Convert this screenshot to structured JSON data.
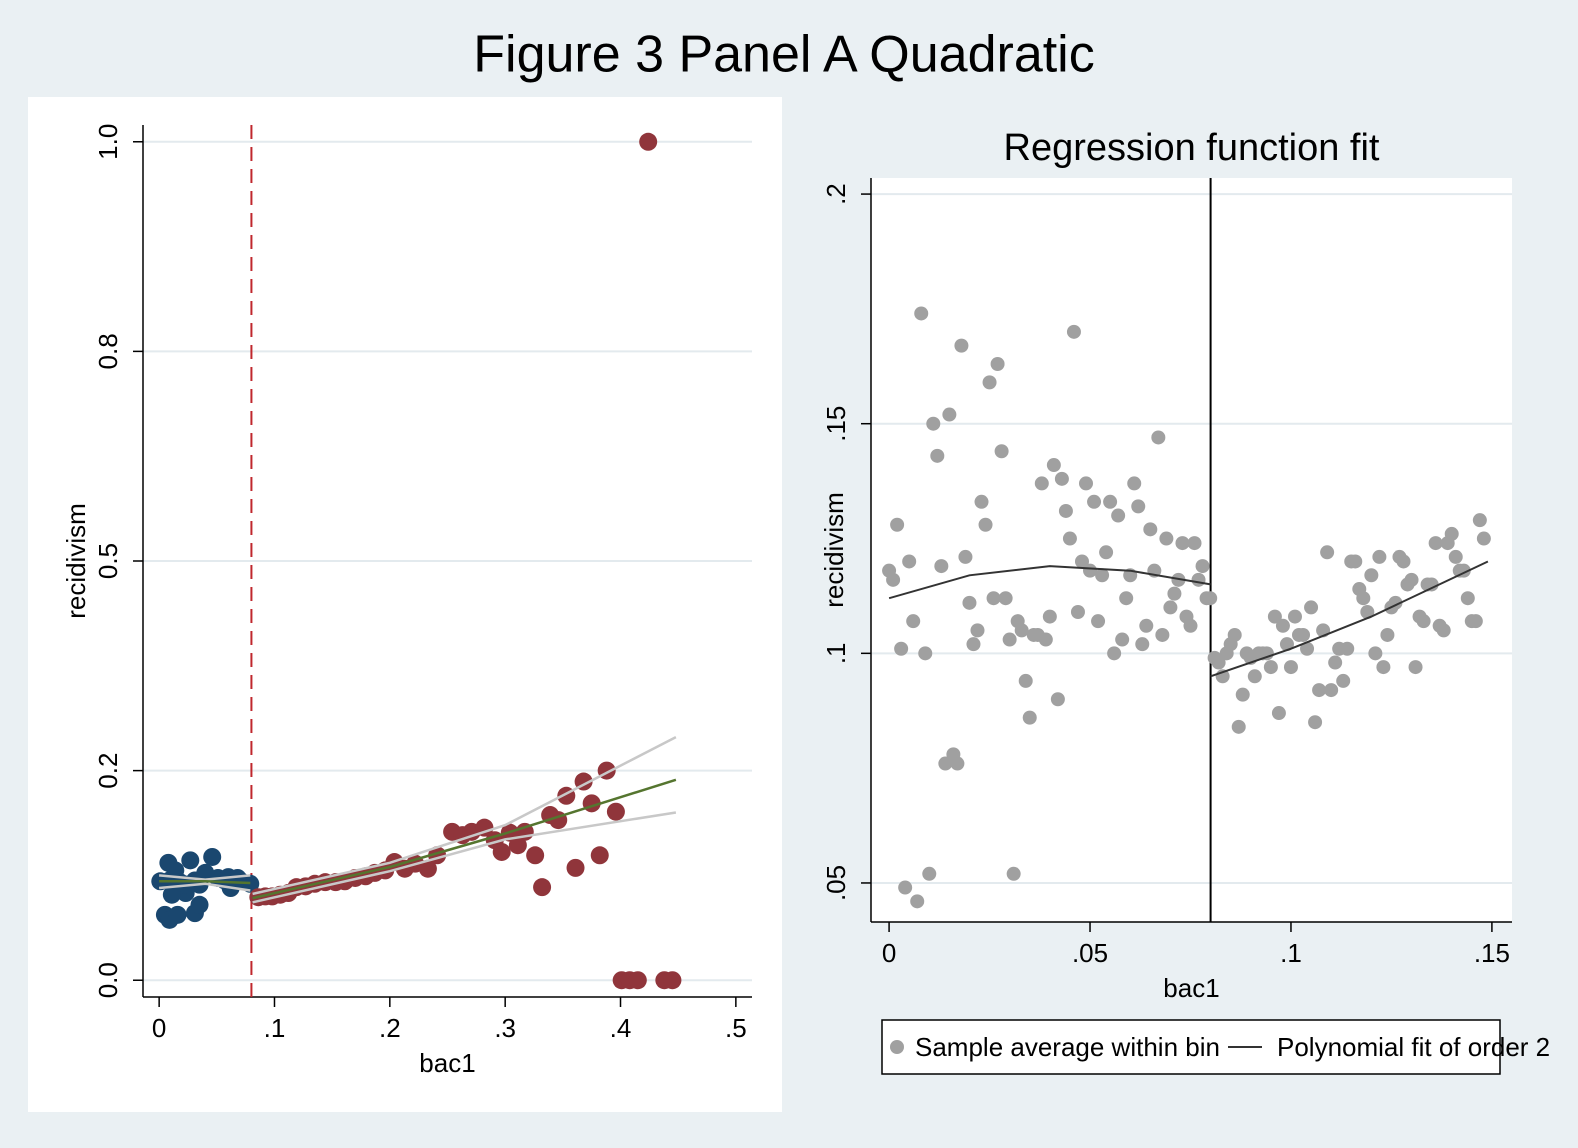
{
  "title": "Figure 3 Panel A Quadratic",
  "chart_data": [
    {
      "type": "scatter",
      "x_label": "bac1",
      "y_label": "recidivism",
      "xlim": [
        -0.014,
        0.514
      ],
      "ylim": [
        -0.02,
        1.02
      ],
      "xticks": [
        0,
        {
          "value": 0.1,
          "label": ".1"
        },
        {
          "value": 0.2,
          "label": ".2"
        },
        {
          "value": 0.3,
          "label": ".3"
        },
        {
          "value": 0.4,
          "label": ".4"
        },
        {
          "value": 0.5,
          "label": ".5"
        }
      ],
      "yticks": [
        {
          "value": 0,
          "label": "0.0"
        },
        {
          "value": 0.25,
          "label": "0.2"
        },
        {
          "value": 0.5,
          "label": "0.5"
        },
        {
          "value": 0.75,
          "label": "0.8"
        },
        {
          "value": 1,
          "label": "1.0"
        }
      ],
      "grid": true,
      "cutoff": 0.08,
      "cutoff_color": "#c0272d",
      "cutoff_dashed": true,
      "series": [
        {
          "type": "scatter",
          "color": "#1a476f",
          "x": [
            0.001,
            0.008,
            0.009,
            0.014,
            0.018,
            0.023,
            0.027,
            0.031,
            0.035,
            0.04,
            0.046,
            0.051,
            0.057,
            0.062,
            0.07,
            0.079,
            0.005,
            0.009,
            0.016,
            0.031,
            0.035,
            0.023,
            0.011,
            0.06,
            0.068
          ],
          "values": [
            0.118,
            0.14,
            0.119,
            0.131,
            0.117,
            0.104,
            0.143,
            0.119,
            0.114,
            0.128,
            0.147,
            0.122,
            0.119,
            0.11,
            0.119,
            0.115,
            0.078,
            0.072,
            0.078,
            0.08,
            0.09,
            0.114,
            0.102,
            0.123,
            0.122
          ]
        },
        {
          "type": "scatter",
          "color": "#90353b",
          "x": [
            0.086,
            0.092,
            0.098,
            0.105,
            0.112,
            0.119,
            0.127,
            0.135,
            0.144,
            0.153,
            0.161,
            0.17,
            0.179,
            0.187,
            0.196,
            0.204,
            0.213,
            0.222,
            0.233,
            0.241,
            0.254,
            0.263,
            0.271,
            0.282,
            0.291,
            0.297,
            0.304,
            0.311,
            0.317,
            0.326,
            0.332,
            0.339,
            0.346,
            0.353,
            0.361,
            0.368,
            0.375,
            0.382,
            0.388,
            0.396,
            0.424,
            0.401,
            0.408,
            0.415,
            0.438,
            0.445
          ],
          "values": [
            0.099,
            0.1,
            0.1,
            0.102,
            0.104,
            0.111,
            0.112,
            0.115,
            0.117,
            0.117,
            0.118,
            0.122,
            0.124,
            0.128,
            0.131,
            0.141,
            0.133,
            0.139,
            0.133,
            0.149,
            0.177,
            0.173,
            0.177,
            0.182,
            0.167,
            0.153,
            0.176,
            0.161,
            0.177,
            0.149,
            0.111,
            0.197,
            0.191,
            0.22,
            0.134,
            0.237,
            0.211,
            0.149,
            0.25,
            0.201,
            1.0,
            0,
            0,
            0,
            0,
            0
          ]
        },
        {
          "type": "line",
          "color": "#c8c8c8",
          "x": [
            0,
            0.04,
            0.079
          ],
          "values": [
            0.125,
            0.12,
            0.125
          ]
        },
        {
          "type": "line",
          "color": "#c8c8c8",
          "x": [
            0,
            0.04,
            0.079
          ],
          "values": [
            0.11,
            0.115,
            0.107
          ]
        },
        {
          "type": "line",
          "color": "#55752f",
          "x": [
            0,
            0.04,
            0.079
          ],
          "values": [
            0.118,
            0.118,
            0.116
          ]
        },
        {
          "type": "line",
          "color": "#c8c8c8",
          "x": [
            0.081,
            0.2,
            0.3,
            0.448
          ],
          "values": [
            0.103,
            0.14,
            0.185,
            0.29
          ]
        },
        {
          "type": "line",
          "color": "#c8c8c8",
          "x": [
            0.081,
            0.2,
            0.3,
            0.448
          ],
          "values": [
            0.093,
            0.13,
            0.168,
            0.2
          ]
        },
        {
          "type": "line",
          "color": "#55752f",
          "x": [
            0.081,
            0.2,
            0.3,
            0.448
          ],
          "values": [
            0.098,
            0.135,
            0.175,
            0.239
          ]
        }
      ]
    },
    {
      "type": "scatter",
      "title": "Regression function fit",
      "x_label": "bac1",
      "y_label": "recidivism",
      "xlim": [
        -0.0045,
        0.155
      ],
      "ylim": [
        0.0415,
        0.2035
      ],
      "xticks": [
        0,
        {
          "value": 0.05,
          "label": ".05"
        },
        {
          "value": 0.1,
          "label": ".1"
        },
        {
          "value": 0.15,
          "label": ".15"
        }
      ],
      "yticks": [
        {
          "value": 0.05,
          "label": ".05"
        },
        {
          "value": 0.1,
          "label": ".1"
        },
        {
          "value": 0.15,
          "label": ".15"
        },
        {
          "value": 0.2,
          "label": ".2"
        }
      ],
      "grid": true,
      "cutoff": 0.08,
      "cutoff_color": "#000000",
      "cutoff_dashed": false,
      "series": [
        {
          "type": "scatter",
          "name": "Sample average within bin",
          "color": "#a0a0a0",
          "x": [
            0.0,
            0.001,
            0.002,
            0.003,
            0.005,
            0.006,
            0.008,
            0.009,
            0.01,
            0.011,
            0.012,
            0.013,
            0.014,
            0.015,
            0.016,
            0.017,
            0.018,
            0.019,
            0.02,
            0.021,
            0.022,
            0.023,
            0.024,
            0.025,
            0.026,
            0.027,
            0.028,
            0.029,
            0.03,
            0.031,
            0.032,
            0.033,
            0.034,
            0.035,
            0.036,
            0.037,
            0.038,
            0.039,
            0.04,
            0.041,
            0.042,
            0.043,
            0.044,
            0.045,
            0.046,
            0.047,
            0.048,
            0.049,
            0.05,
            0.051,
            0.052,
            0.053,
            0.054,
            0.055,
            0.056,
            0.057,
            0.058,
            0.059,
            0.06,
            0.061,
            0.062,
            0.063,
            0.064,
            0.065,
            0.066,
            0.067,
            0.068,
            0.069,
            0.07,
            0.071,
            0.072,
            0.073,
            0.074,
            0.075,
            0.076,
            0.077,
            0.078,
            0.079,
            0.0799,
            0.004,
            0.007,
            0.081,
            0.082,
            0.083,
            0.084,
            0.085,
            0.086,
            0.087,
            0.088,
            0.089,
            0.09,
            0.091,
            0.092,
            0.093,
            0.094,
            0.095,
            0.096,
            0.097,
            0.098,
            0.099,
            0.1,
            0.101,
            0.102,
            0.103,
            0.104,
            0.105,
            0.106,
            0.107,
            0.108,
            0.109,
            0.11,
            0.111,
            0.112,
            0.113,
            0.114,
            0.115,
            0.116,
            0.117,
            0.118,
            0.119,
            0.12,
            0.121,
            0.122,
            0.123,
            0.124,
            0.125,
            0.126,
            0.127,
            0.128,
            0.129,
            0.13,
            0.131,
            0.132,
            0.133,
            0.134,
            0.135,
            0.136,
            0.137,
            0.138,
            0.139,
            0.14,
            0.141,
            0.142,
            0.143,
            0.144,
            0.145,
            0.146,
            0.147,
            0.148
          ],
          "values": [
            0.118,
            0.116,
            0.128,
            0.101,
            0.12,
            0.107,
            0.174,
            0.1,
            0.052,
            0.15,
            0.143,
            0.119,
            0.076,
            0.152,
            0.078,
            0.076,
            0.167,
            0.121,
            0.111,
            0.102,
            0.105,
            0.133,
            0.128,
            0.159,
            0.112,
            0.163,
            0.144,
            0.112,
            0.103,
            0.052,
            0.107,
            0.105,
            0.094,
            0.086,
            0.104,
            0.104,
            0.137,
            0.103,
            0.108,
            0.141,
            0.09,
            0.138,
            0.131,
            0.125,
            0.17,
            0.109,
            0.12,
            0.137,
            0.118,
            0.133,
            0.107,
            0.117,
            0.122,
            0.133,
            0.1,
            0.13,
            0.103,
            0.112,
            0.117,
            0.137,
            0.132,
            0.102,
            0.106,
            0.127,
            0.118,
            0.147,
            0.104,
            0.125,
            0.11,
            0.113,
            0.116,
            0.124,
            0.108,
            0.106,
            0.124,
            0.116,
            0.119,
            0.112,
            0.112,
            0.049,
            0.046,
            0.099,
            0.098,
            0.095,
            0.1,
            0.102,
            0.104,
            0.084,
            0.091,
            0.1,
            0.099,
            0.095,
            0.1,
            0.1,
            0.1,
            0.097,
            0.108,
            0.087,
            0.106,
            0.102,
            0.097,
            0.108,
            0.104,
            0.104,
            0.101,
            0.11,
            0.085,
            0.092,
            0.105,
            0.122,
            0.092,
            0.098,
            0.101,
            0.094,
            0.101,
            0.12,
            0.12,
            0.114,
            0.112,
            0.109,
            0.117,
            0.1,
            0.121,
            0.097,
            0.104,
            0.11,
            0.111,
            0.121,
            0.12,
            0.115,
            0.116,
            0.097,
            0.108,
            0.107,
            0.115,
            0.115,
            0.124,
            0.106,
            0.105,
            0.124,
            0.126,
            0.121,
            0.118,
            0.118,
            0.112,
            0.107,
            0.107,
            0.129,
            0.125
          ]
        },
        {
          "type": "line",
          "name": "Polynomial fit of order 2",
          "color": "#333333",
          "x": [
            0,
            0.02,
            0.04,
            0.06,
            0.08,
            0.08,
            0.08,
            0.1,
            0.12,
            0.149
          ],
          "values": [
            0.112,
            0.117,
            0.119,
            0.118,
            0.115,
            null,
            0.095,
            0.101,
            0.108,
            0.12
          ]
        }
      ]
    }
  ]
}
